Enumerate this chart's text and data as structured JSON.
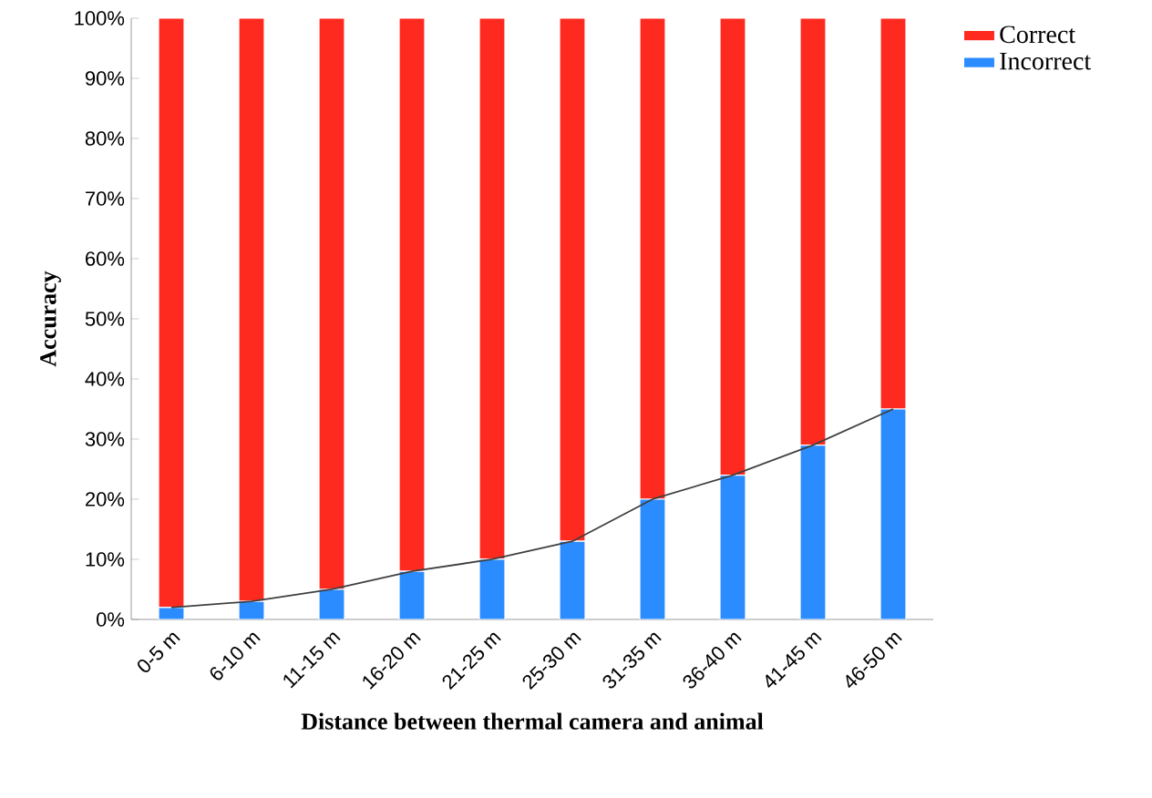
{
  "chart_data": {
    "type": "bar",
    "stacked": true,
    "xlabel": "Distance between thermal camera and animal",
    "ylabel": "Accuracy",
    "categories": [
      "0-5 m",
      "6-10 m",
      "11-15 m",
      "16-20 m",
      "21-25 m",
      "25-30 m",
      "31-35 m",
      "36-40 m",
      "41-45 m",
      "46-50 m"
    ],
    "series": [
      {
        "name": "Incorrect",
        "color": "#2b8cff",
        "values": [
          2,
          3,
          5,
          8,
          10,
          13,
          20,
          24,
          29,
          35
        ]
      },
      {
        "name": "Correct",
        "color": "#ff2a1f",
        "values": [
          98,
          97,
          95,
          92,
          90,
          87,
          80,
          76,
          71,
          65
        ]
      },
      {
        "type": "line",
        "color": "#404040",
        "values": [
          2,
          3,
          5,
          8,
          10,
          13,
          20,
          24,
          29,
          35
        ]
      }
    ],
    "ylim": [
      0,
      100
    ],
    "yticks": [
      {
        "value": 0,
        "label": "0%"
      },
      {
        "value": 10,
        "label": "10%"
      },
      {
        "value": 20,
        "label": "20%"
      },
      {
        "value": 30,
        "label": "30%"
      },
      {
        "value": 40,
        "label": "40%"
      },
      {
        "value": 50,
        "label": "50%"
      },
      {
        "value": 60,
        "label": "60%"
      },
      {
        "value": 70,
        "label": "70%"
      },
      {
        "value": 80,
        "label": "80%"
      },
      {
        "value": 90,
        "label": "90%"
      },
      {
        "value": 100,
        "label": "100%"
      }
    ],
    "legend": "top right"
  }
}
